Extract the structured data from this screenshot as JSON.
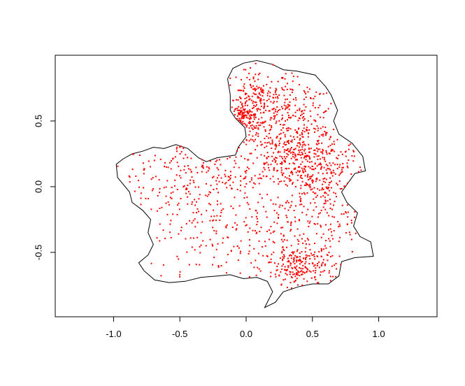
{
  "chart_data": {
    "type": "scatter",
    "title": "",
    "xlabel": "",
    "ylabel": "",
    "xlim": [
      -1.44,
      1.44
    ],
    "ylim": [
      -0.99,
      1.0
    ],
    "grid": false,
    "legend": "none",
    "x_ticks": [
      {
        "value": -1.0,
        "label": "-1.0"
      },
      {
        "value": -0.5,
        "label": "-0.5"
      },
      {
        "value": 0.0,
        "label": "0.0"
      },
      {
        "value": 0.5,
        "label": "0.5"
      },
      {
        "value": 1.0,
        "label": "1.0"
      }
    ],
    "y_ticks": [
      {
        "value": -0.5,
        "label": "-0.5"
      },
      {
        "value": 0.0,
        "label": "0.0"
      },
      {
        "value": 0.5,
        "label": "0.5"
      }
    ],
    "point_color": "#ff0000",
    "boundary_color": "#000000",
    "boundary": [
      [
        0.14,
        -0.92
      ],
      [
        0.22,
        -0.88
      ],
      [
        0.28,
        -0.8
      ],
      [
        0.4,
        -0.76
      ],
      [
        0.5,
        -0.74
      ],
      [
        0.62,
        -0.74
      ],
      [
        0.7,
        -0.68
      ],
      [
        0.72,
        -0.57
      ],
      [
        0.82,
        -0.54
      ],
      [
        0.96,
        -0.53
      ],
      [
        0.94,
        -0.42
      ],
      [
        0.86,
        -0.38
      ],
      [
        0.81,
        -0.3
      ],
      [
        0.84,
        -0.2
      ],
      [
        0.76,
        -0.12
      ],
      [
        0.72,
        -0.04
      ],
      [
        0.82,
        0.1
      ],
      [
        0.9,
        0.12
      ],
      [
        0.88,
        0.23
      ],
      [
        0.8,
        0.33
      ],
      [
        0.7,
        0.4
      ],
      [
        0.66,
        0.5
      ],
      [
        0.69,
        0.58
      ],
      [
        0.64,
        0.7
      ],
      [
        0.6,
        0.76
      ],
      [
        0.52,
        0.85
      ],
      [
        0.38,
        0.88
      ],
      [
        0.28,
        0.89
      ],
      [
        0.2,
        0.93
      ],
      [
        0.08,
        0.96
      ],
      [
        -0.02,
        0.94
      ],
      [
        -0.1,
        0.9
      ],
      [
        -0.14,
        0.82
      ],
      [
        -0.12,
        0.7
      ],
      [
        -0.12,
        0.58
      ],
      [
        -0.08,
        0.52
      ],
      [
        -0.01,
        0.45
      ],
      [
        0.0,
        0.38
      ],
      [
        -0.06,
        0.3
      ],
      [
        -0.08,
        0.24
      ],
      [
        -0.22,
        0.22
      ],
      [
        -0.3,
        0.19
      ],
      [
        -0.36,
        0.22
      ],
      [
        -0.44,
        0.29
      ],
      [
        -0.53,
        0.32
      ],
      [
        -0.62,
        0.29
      ],
      [
        -0.7,
        0.3
      ],
      [
        -0.78,
        0.27
      ],
      [
        -0.86,
        0.25
      ],
      [
        -0.93,
        0.21
      ],
      [
        -0.98,
        0.17
      ],
      [
        -0.97,
        0.07
      ],
      [
        -0.88,
        -0.04
      ],
      [
        -0.86,
        -0.12
      ],
      [
        -0.78,
        -0.18
      ],
      [
        -0.72,
        -0.25
      ],
      [
        -0.74,
        -0.35
      ],
      [
        -0.7,
        -0.44
      ],
      [
        -0.74,
        -0.52
      ],
      [
        -0.81,
        -0.58
      ],
      [
        -0.77,
        -0.64
      ],
      [
        -0.69,
        -0.71
      ],
      [
        -0.58,
        -0.73
      ],
      [
        -0.46,
        -0.72
      ],
      [
        -0.34,
        -0.69
      ],
      [
        -0.22,
        -0.68
      ],
      [
        -0.12,
        -0.67
      ],
      [
        -0.02,
        -0.7
      ],
      [
        0.08,
        -0.69
      ],
      [
        0.16,
        -0.72
      ],
      [
        0.2,
        -0.8
      ],
      [
        0.14,
        -0.92
      ]
    ],
    "clusters": [
      {
        "center": [
          0.08,
          0.62
        ],
        "spread": [
          0.13,
          0.14
        ],
        "count": 260
      },
      {
        "center": [
          -0.02,
          0.54
        ],
        "spread": [
          0.05,
          0.04
        ],
        "count": 70
      },
      {
        "center": [
          0.42,
          0.5
        ],
        "spread": [
          0.14,
          0.16
        ],
        "count": 170
      },
      {
        "center": [
          0.34,
          0.22
        ],
        "spread": [
          0.2,
          0.12
        ],
        "count": 220
      },
      {
        "center": [
          0.56,
          0.05
        ],
        "spread": [
          0.18,
          0.22
        ],
        "count": 300
      },
      {
        "center": [
          0.42,
          -0.62
        ],
        "spread": [
          0.13,
          0.09
        ],
        "count": 200
      },
      {
        "center": [
          -0.45,
          0.12
        ],
        "spread": [
          0.32,
          0.17
        ],
        "count": 190
      },
      {
        "center": [
          0.0,
          -0.3
        ],
        "spread": [
          0.45,
          0.28
        ],
        "count": 330
      }
    ]
  }
}
